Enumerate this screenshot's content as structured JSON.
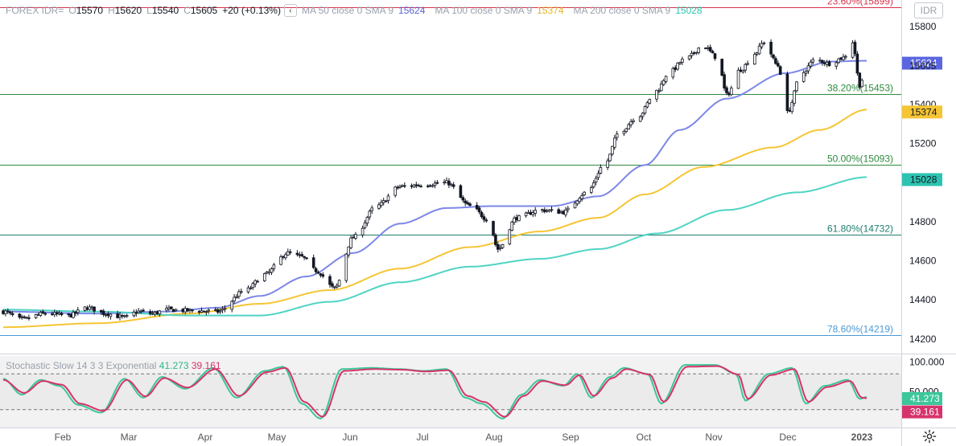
{
  "legend": {
    "symbol": "FOREX IDR=",
    "o_label": "O",
    "o_value": "15570",
    "h_label": "H",
    "h_value": "15620",
    "l_label": "L",
    "l_value": "15540",
    "c_label": "C",
    "c_value": "15605",
    "change": "+20 (+0.13%)",
    "collapse_glyph": "‹",
    "ma50_label": "MA 50 close 0 SMA 9",
    "ma50_value": "15624",
    "ma100_label": "MA 100 close 0 SMA 9",
    "ma100_value": "15374",
    "ma200_label": "MA 200 close 0 SMA 9",
    "ma200_value": "15028"
  },
  "symbol_box": "IDR",
  "stoch_legend": {
    "label": "Stochastic Slow 14 3 3 Exponential",
    "k_value": "41.273",
    "d_value": "39.161"
  },
  "colors": {
    "ma50": "#7c87e8",
    "ma100": "#f5c534",
    "ma200": "#4fd4c4",
    "fib_red": "#d6334b",
    "fib_green": "#2e8b3e",
    "fib_teal": "#1e7e6e",
    "fib_blue": "#4a9ad6",
    "stoch_k": "#3cc79a",
    "stoch_d": "#d6336c"
  },
  "chart_data": [
    {
      "type": "candlestick",
      "y_axis_ticks": [
        14200,
        14400,
        14600,
        14800,
        15000,
        15200,
        15400,
        15600,
        15800
      ],
      "ylim": [
        14125,
        15935
      ],
      "x_labels": [
        "Feb",
        "Mar",
        "Apr",
        "May",
        "Jun",
        "Jul",
        "Aug",
        "Sep",
        "Oct",
        "Nov",
        "Dec",
        "2023"
      ],
      "last_price": 15605,
      "fib_levels": [
        {
          "label": "23.60%(15899)",
          "value": 15899,
          "color": "#d6334b"
        },
        {
          "label": "38.20%(15453)",
          "value": 15453,
          "color": "#2e8b3e"
        },
        {
          "label": "50.00%(15093)",
          "value": 15093,
          "color": "#2e8b3e"
        },
        {
          "label": "61.80%(14732)",
          "value": 14732,
          "color": "#1e7e6e"
        },
        {
          "label": "78.60%(14219)",
          "value": 14219,
          "color": "#4a9ad6"
        }
      ],
      "price_anchors": [
        [
          0,
          14340
        ],
        [
          8,
          14300
        ],
        [
          18,
          14330
        ],
        [
          28,
          14320
        ],
        [
          36,
          14360
        ],
        [
          44,
          14330
        ],
        [
          52,
          14310
        ],
        [
          58,
          14340
        ],
        [
          64,
          14330
        ],
        [
          70,
          14350
        ],
        [
          80,
          14345
        ],
        [
          92,
          14340
        ],
        [
          104,
          14450
        ],
        [
          112,
          14530
        ],
        [
          122,
          14640
        ],
        [
          128,
          14620
        ],
        [
          134,
          14550
        ],
        [
          142,
          14460
        ],
        [
          150,
          14720
        ],
        [
          160,
          14880
        ],
        [
          170,
          14980
        ],
        [
          180,
          14990
        ],
        [
          190,
          15000
        ],
        [
          200,
          14880
        ],
        [
          208,
          14810
        ],
        [
          212,
          14660
        ],
        [
          220,
          14820
        ],
        [
          230,
          14860
        ],
        [
          240,
          14850
        ],
        [
          250,
          14950
        ],
        [
          258,
          15100
        ],
        [
          264,
          15260
        ],
        [
          272,
          15340
        ],
        [
          280,
          15470
        ],
        [
          285,
          15560
        ],
        [
          292,
          15630
        ],
        [
          300,
          15700
        ],
        [
          306,
          15640
        ],
        [
          310,
          15450
        ],
        [
          316,
          15580
        ],
        [
          322,
          15660
        ],
        [
          326,
          15720
        ],
        [
          332,
          15600
        ],
        [
          336,
          15360
        ],
        [
          342,
          15560
        ],
        [
          348,
          15630
        ],
        [
          354,
          15610
        ],
        [
          360,
          15640
        ],
        [
          364,
          15720
        ],
        [
          367,
          15500
        ],
        [
          370,
          15605
        ]
      ],
      "ma_series": [
        {
          "name": "MA 50 close 0 SMA 9",
          "color": "#7c87e8",
          "anchors": [
            [
              0,
              14340
            ],
            [
              40,
              14330
            ],
            [
              70,
              14340
            ],
            [
              92,
              14360
            ],
            [
              110,
              14420
            ],
            [
              130,
              14520
            ],
            [
              150,
              14640
            ],
            [
              170,
              14790
            ],
            [
              190,
              14870
            ],
            [
              210,
              14880
            ],
            [
              235,
              14880
            ],
            [
              255,
              14930
            ],
            [
              275,
              15090
            ],
            [
              290,
              15270
            ],
            [
              310,
              15430
            ],
            [
              335,
              15560
            ],
            [
              355,
              15620
            ],
            [
              370,
              15624
            ]
          ]
        },
        {
          "name": "MA 100 close 0 SMA 9",
          "color": "#f5c534",
          "anchors": [
            [
              0,
              14260
            ],
            [
              40,
              14280
            ],
            [
              80,
              14330
            ],
            [
              110,
              14380
            ],
            [
              140,
              14450
            ],
            [
              170,
              14560
            ],
            [
              200,
              14670
            ],
            [
              230,
              14750
            ],
            [
              255,
              14820
            ],
            [
              275,
              14940
            ],
            [
              300,
              15080
            ],
            [
              330,
              15180
            ],
            [
              350,
              15270
            ],
            [
              370,
              15374
            ]
          ]
        },
        {
          "name": "MA 200 close 0 SMA 9",
          "color": "#4fd4c4",
          "anchors": [
            [
              0,
              14350
            ],
            [
              40,
              14340
            ],
            [
              80,
              14320
            ],
            [
              110,
              14320
            ],
            [
              140,
              14390
            ],
            [
              170,
              14490
            ],
            [
              200,
              14570
            ],
            [
              230,
              14610
            ],
            [
              255,
              14660
            ],
            [
              280,
              14740
            ],
            [
              310,
              14860
            ],
            [
              340,
              14950
            ],
            [
              370,
              15028
            ]
          ]
        }
      ]
    },
    {
      "type": "line",
      "name": "Stochastic Slow 14 3 3 Exponential",
      "y_axis_ticks": [
        100.0,
        50.0
      ],
      "y_tick_labels": [
        "100.000",
        "50.000"
      ],
      "ylim": [
        -10,
        110
      ],
      "band": [
        20,
        80
      ],
      "series": [
        {
          "name": "%K",
          "value": 41.273,
          "color": "#3cc79a",
          "anchors": [
            [
              0,
              72
            ],
            [
              8,
              45
            ],
            [
              16,
              70
            ],
            [
              24,
              60
            ],
            [
              32,
              28
            ],
            [
              42,
              15
            ],
            [
              52,
              72
            ],
            [
              60,
              40
            ],
            [
              68,
              75
            ],
            [
              78,
              55
            ],
            [
              90,
              90
            ],
            [
              100,
              40
            ],
            [
              112,
              85
            ],
            [
              120,
              92
            ],
            [
              128,
              30
            ],
            [
              136,
              5
            ],
            [
              145,
              88
            ],
            [
              158,
              90
            ],
            [
              170,
              88
            ],
            [
              180,
              85
            ],
            [
              190,
              88
            ],
            [
              198,
              40
            ],
            [
              205,
              30
            ],
            [
              214,
              5
            ],
            [
              222,
              45
            ],
            [
              230,
              70
            ],
            [
              240,
              60
            ],
            [
              246,
              80
            ],
            [
              252,
              40
            ],
            [
              260,
              75
            ],
            [
              266,
              90
            ],
            [
              276,
              80
            ],
            [
              282,
              30
            ],
            [
              292,
              95
            ],
            [
              305,
              95
            ],
            [
              314,
              80
            ],
            [
              318,
              35
            ],
            [
              328,
              80
            ],
            [
              338,
              90
            ],
            [
              344,
              30
            ],
            [
              352,
              60
            ],
            [
              362,
              70
            ],
            [
              367,
              38
            ],
            [
              370,
              41.273
            ]
          ]
        },
        {
          "name": "%D",
          "value": 39.161,
          "color": "#d6336c",
          "anchors": [
            [
              0,
              70
            ],
            [
              9,
              48
            ],
            [
              17,
              68
            ],
            [
              25,
              62
            ],
            [
              33,
              30
            ],
            [
              43,
              18
            ],
            [
              53,
              70
            ],
            [
              61,
              42
            ],
            [
              69,
              73
            ],
            [
              79,
              57
            ],
            [
              91,
              88
            ],
            [
              101,
              43
            ],
            [
              113,
              83
            ],
            [
              121,
              90
            ],
            [
              129,
              33
            ],
            [
              137,
              8
            ],
            [
              146,
              85
            ],
            [
              159,
              88
            ],
            [
              171,
              87
            ],
            [
              181,
              84
            ],
            [
              191,
              86
            ],
            [
              199,
              43
            ],
            [
              206,
              33
            ],
            [
              215,
              8
            ],
            [
              223,
              43
            ],
            [
              231,
              68
            ],
            [
              241,
              61
            ],
            [
              247,
              78
            ],
            [
              253,
              43
            ],
            [
              261,
              73
            ],
            [
              267,
              88
            ],
            [
              277,
              79
            ],
            [
              283,
              33
            ],
            [
              293,
              92
            ],
            [
              306,
              93
            ],
            [
              315,
              79
            ],
            [
              319,
              38
            ],
            [
              329,
              78
            ],
            [
              339,
              88
            ],
            [
              345,
              33
            ],
            [
              353,
              58
            ],
            [
              363,
              68
            ],
            [
              368,
              40
            ],
            [
              370,
              39.161
            ]
          ]
        }
      ]
    }
  ]
}
